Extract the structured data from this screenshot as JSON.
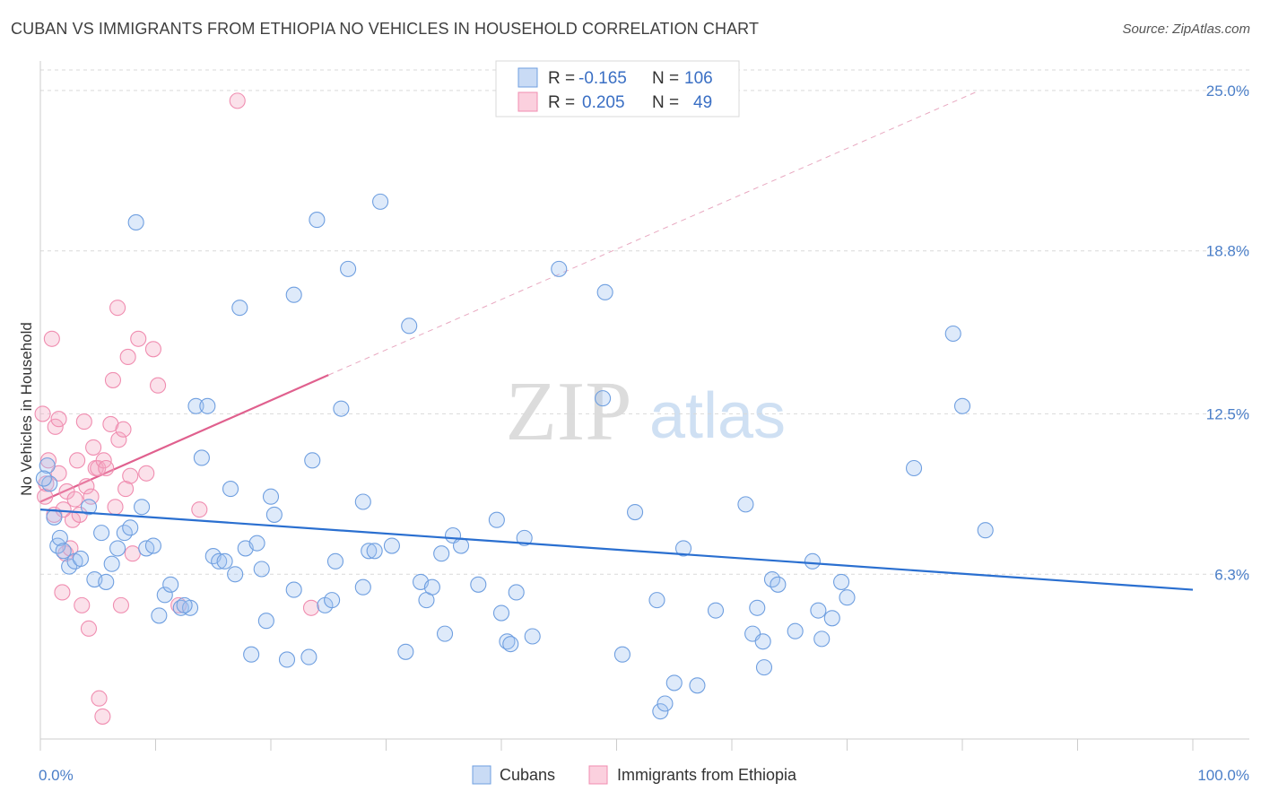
{
  "title": "CUBAN VS IMMIGRANTS FROM ETHIOPIA NO VEHICLES IN HOUSEHOLD CORRELATION CHART",
  "source": "Source: ZipAtlas.com",
  "watermark": {
    "zip": "ZIP",
    "atlas": "atlas"
  },
  "colors": {
    "cubans": "#6f9fe0",
    "ethiopia": "#f08db0",
    "cubans_line": "#2a6fd0",
    "ethiopia_line": "#e0608e"
  },
  "legend": {
    "r_label": "R =",
    "n_label": "N =",
    "cubans": {
      "r": "-0.165",
      "n": "106"
    },
    "ethiopia": {
      "r": "0.205",
      "n": "49"
    }
  },
  "bottom_legend": {
    "cubans": "Cubans",
    "ethiopia": "Immigrants from Ethiopia"
  },
  "chart_data": {
    "type": "scatter",
    "title": "CUBAN VS IMMIGRANTS FROM ETHIOPIA NO VEHICLES IN HOUSEHOLD CORRELATION CHART",
    "xlabel": "",
    "ylabel": "No Vehicles in Household",
    "xlim": [
      0,
      100
    ],
    "ylim": [
      0,
      26
    ],
    "x_tick_labels": [
      "0.0%",
      "100.0%"
    ],
    "y_ticks": [
      6.3,
      12.5,
      18.8,
      25.0
    ],
    "y_tick_labels": [
      "6.3%",
      "12.5%",
      "18.8%",
      "25.0%"
    ],
    "grid": "horizontal dashed",
    "legend_position": "top-center",
    "series": [
      {
        "name": "Cubans",
        "r": -0.165,
        "n": 106,
        "trend": {
          "x": [
            0,
            100
          ],
          "y": [
            8.8,
            5.7
          ]
        },
        "points": [
          [
            0.6,
            10.5
          ],
          [
            0.8,
            9.8
          ],
          [
            1.2,
            8.5
          ],
          [
            1.5,
            7.4
          ],
          [
            1.7,
            7.7
          ],
          [
            2.0,
            7.2
          ],
          [
            2.5,
            6.6
          ],
          [
            3.0,
            6.8
          ],
          [
            4.2,
            8.9
          ],
          [
            4.7,
            6.1
          ],
          [
            5.3,
            7.9
          ],
          [
            5.7,
            6.0
          ],
          [
            6.2,
            6.7
          ],
          [
            6.7,
            7.3
          ],
          [
            7.3,
            7.9
          ],
          [
            7.8,
            8.1
          ],
          [
            8.3,
            19.9
          ],
          [
            8.8,
            8.9
          ],
          [
            9.2,
            7.3
          ],
          [
            9.8,
            7.4
          ],
          [
            10.3,
            4.7
          ],
          [
            10.8,
            5.5
          ],
          [
            11.3,
            5.9
          ],
          [
            12.2,
            5.0
          ],
          [
            13.0,
            5.0
          ],
          [
            13.5,
            12.8
          ],
          [
            14.0,
            10.8
          ],
          [
            14.5,
            12.8
          ],
          [
            15.0,
            7.0
          ],
          [
            15.5,
            6.8
          ],
          [
            16.0,
            6.8
          ],
          [
            16.5,
            9.6
          ],
          [
            16.9,
            6.3
          ],
          [
            17.3,
            16.6
          ],
          [
            17.8,
            7.3
          ],
          [
            18.3,
            3.2
          ],
          [
            18.8,
            7.5
          ],
          [
            19.2,
            6.5
          ],
          [
            19.6,
            4.5
          ],
          [
            20.0,
            9.3
          ],
          [
            20.3,
            8.6
          ],
          [
            21.4,
            3.0
          ],
          [
            22.0,
            5.7
          ],
          [
            22.0,
            17.1
          ],
          [
            23.3,
            3.1
          ],
          [
            23.6,
            10.7
          ],
          [
            24.0,
            20.0
          ],
          [
            24.7,
            5.1
          ],
          [
            25.3,
            5.3
          ],
          [
            25.6,
            6.8
          ],
          [
            26.1,
            12.7
          ],
          [
            26.7,
            18.1
          ],
          [
            28.0,
            5.8
          ],
          [
            28.0,
            9.1
          ],
          [
            28.5,
            7.2
          ],
          [
            29.0,
            7.2
          ],
          [
            29.5,
            20.7
          ],
          [
            30.5,
            7.4
          ],
          [
            32.0,
            15.9
          ],
          [
            31.7,
            3.3
          ],
          [
            33.0,
            6.0
          ],
          [
            33.5,
            5.3
          ],
          [
            34.0,
            5.8
          ],
          [
            34.8,
            7.1
          ],
          [
            35.1,
            4.0
          ],
          [
            35.8,
            7.8
          ],
          [
            36.5,
            7.4
          ],
          [
            38.0,
            5.9
          ],
          [
            39.6,
            8.4
          ],
          [
            40.0,
            4.8
          ],
          [
            40.5,
            3.7
          ],
          [
            40.8,
            3.6
          ],
          [
            41.3,
            5.6
          ],
          [
            42.0,
            7.7
          ],
          [
            42.7,
            3.9
          ],
          [
            45.0,
            18.1
          ],
          [
            49.0,
            17.2
          ],
          [
            48.8,
            13.1
          ],
          [
            50.5,
            3.2
          ],
          [
            51.6,
            8.7
          ],
          [
            53.5,
            5.3
          ],
          [
            53.8,
            1.0
          ],
          [
            54.2,
            1.3
          ],
          [
            55.0,
            2.1
          ],
          [
            55.8,
            7.3
          ],
          [
            57.0,
            2.0
          ],
          [
            58.6,
            4.9
          ],
          [
            61.2,
            9.0
          ],
          [
            61.8,
            4.0
          ],
          [
            62.2,
            5.0
          ],
          [
            62.7,
            3.7
          ],
          [
            62.8,
            2.7
          ],
          [
            63.5,
            6.1
          ],
          [
            64.0,
            5.9
          ],
          [
            65.5,
            4.1
          ],
          [
            67.0,
            6.8
          ],
          [
            67.5,
            4.9
          ],
          [
            67.8,
            3.8
          ],
          [
            68.7,
            4.6
          ],
          [
            69.5,
            6.0
          ],
          [
            70.0,
            5.4
          ],
          [
            75.8,
            10.4
          ],
          [
            79.2,
            15.6
          ],
          [
            80.0,
            12.8
          ],
          [
            82.0,
            8.0
          ],
          [
            0.3,
            10.0
          ],
          [
            3.5,
            6.9
          ],
          [
            12.5,
            5.1
          ]
        ]
      },
      {
        "name": "Immigrants from Ethiopia",
        "r": 0.205,
        "n": 49,
        "trend": {
          "x": [
            0,
            25
          ],
          "y": [
            9.1,
            14.0
          ]
        },
        "trend_extended": {
          "x": [
            25,
            81.5
          ],
          "y": [
            14.0,
            25.0
          ]
        },
        "points": [
          [
            0.2,
            12.5
          ],
          [
            0.5,
            9.8
          ],
          [
            0.7,
            10.7
          ],
          [
            1.0,
            15.4
          ],
          [
            1.3,
            12.0
          ],
          [
            1.6,
            10.2
          ],
          [
            1.6,
            12.3
          ],
          [
            1.9,
            5.6
          ],
          [
            2.2,
            7.1
          ],
          [
            2.3,
            9.5
          ],
          [
            2.6,
            7.3
          ],
          [
            2.8,
            8.4
          ],
          [
            3.0,
            9.2
          ],
          [
            3.2,
            10.7
          ],
          [
            3.4,
            8.6
          ],
          [
            3.6,
            5.1
          ],
          [
            3.8,
            12.2
          ],
          [
            4.0,
            9.7
          ],
          [
            4.2,
            4.2
          ],
          [
            4.4,
            9.3
          ],
          [
            4.6,
            11.2
          ],
          [
            4.8,
            10.4
          ],
          [
            5.0,
            10.4
          ],
          [
            5.5,
            10.7
          ],
          [
            5.7,
            10.4
          ],
          [
            6.1,
            12.1
          ],
          [
            6.3,
            13.8
          ],
          [
            6.5,
            8.9
          ],
          [
            6.7,
            16.6
          ],
          [
            6.8,
            11.5
          ],
          [
            7.0,
            5.1
          ],
          [
            7.2,
            11.9
          ],
          [
            7.4,
            9.6
          ],
          [
            7.6,
            14.7
          ],
          [
            7.8,
            10.1
          ],
          [
            8.0,
            7.1
          ],
          [
            8.5,
            15.4
          ],
          [
            9.2,
            10.2
          ],
          [
            9.8,
            15.0
          ],
          [
            10.2,
            13.6
          ],
          [
            12.0,
            5.1
          ],
          [
            13.8,
            8.8
          ],
          [
            17.1,
            24.6
          ],
          [
            0.4,
            9.3
          ],
          [
            1.2,
            8.6
          ],
          [
            2.0,
            8.8
          ],
          [
            5.1,
            1.5
          ],
          [
            5.4,
            0.8
          ],
          [
            23.5,
            5.0
          ]
        ]
      }
    ]
  }
}
